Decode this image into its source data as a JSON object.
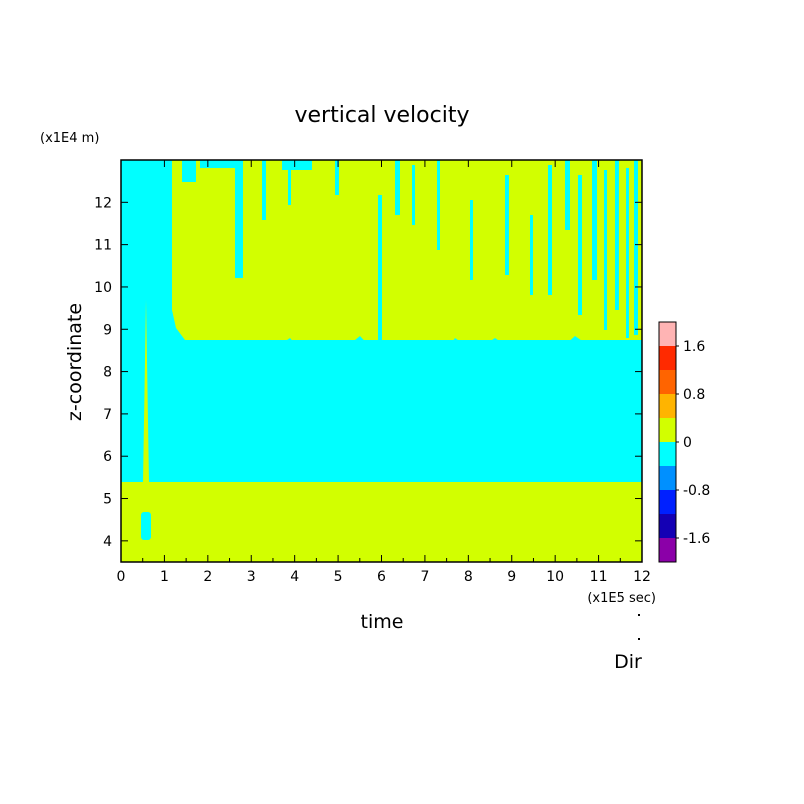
{
  "chart_data": {
    "type": "heatmap",
    "title": "vertical velocity",
    "xlabel": "time",
    "ylabel": "z-coordinate",
    "x_unit": "(x1E5 sec)",
    "y_unit": "(x1E4 m)",
    "footer_label": "Dir",
    "xlim": [
      0,
      12
    ],
    "ylim": [
      3.5,
      13
    ],
    "x_ticks": [
      0,
      1,
      2,
      3,
      4,
      5,
      6,
      7,
      8,
      9,
      10,
      11,
      12
    ],
    "y_ticks": [
      4,
      5,
      6,
      7,
      8,
      9,
      10,
      11,
      12
    ],
    "grid": false,
    "colorbar": {
      "placement": "right",
      "min": -2.0,
      "max": 2.0,
      "step": 0.4,
      "colors": [
        "#8b00a8",
        "#1400b4",
        "#0020ff",
        "#0090ff",
        "#00ffff",
        "#d2ff00",
        "#ffb400",
        "#ff6400",
        "#ff2a00",
        "#ffb4b4"
      ],
      "tick_values": [
        -1.6,
        -0.8,
        0,
        0.8,
        1.6
      ],
      "tick_labels": [
        "-1.6",
        "-0.8",
        "0",
        "0.8",
        "1.6"
      ]
    },
    "regions": {
      "lower_positive_layer": {
        "z_from": 3.5,
        "z_to": 5.4,
        "class": "0 to 0.4",
        "color": "#d2ff00"
      },
      "middle_negative_layer": {
        "z_from": 5.4,
        "z_to": 8.6,
        "class": "-0.4 to 0",
        "color": "#00ffff"
      },
      "upper_mixed_layer": {
        "z_from": 8.6,
        "z_to": 13,
        "class": "0 to 0.4 with -0.4 to 0 streaks",
        "color": "#d2ff00"
      },
      "early_negative_column": {
        "t_from": 0,
        "t_to": 1.2,
        "z_from": 5.4,
        "z_to": 13,
        "class": "-0.4 to 0",
        "color": "#00ffff"
      },
      "small_negative_patch": {
        "t_from": 0.45,
        "t_to": 0.65,
        "z_from": 4.0,
        "z_to": 4.7,
        "class": "-0.4 to 0",
        "color": "#00ffff"
      }
    }
  }
}
